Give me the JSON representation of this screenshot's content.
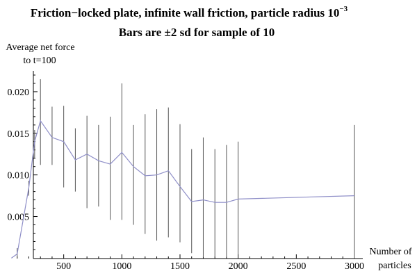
{
  "chart_data": {
    "type": "line",
    "title_main": "Friction−locked plate, infinite wall friction, particle radius 10",
    "title_exponent": "−3",
    "subtitle": "Bars are ±2 sd for sample of 10",
    "ylabel_line1": "Average net force",
    "ylabel_line2": "to t=100",
    "xlabel_line1": "Number of",
    "xlabel_line2": "particles",
    "xlim": [
      0,
      3000
    ],
    "ylim": [
      -5e-05,
      0.0225
    ],
    "x_ticks": [
      500,
      1000,
      1500,
      2000,
      2500,
      3000
    ],
    "x_tick_labels": [
      "500",
      "1000",
      "1500",
      "2000",
      "2500",
      "3000"
    ],
    "y_ticks": [
      0.005,
      0.01,
      0.015,
      0.02
    ],
    "y_tick_labels": [
      "0.005",
      "0.010",
      "0.015",
      "0.020"
    ],
    "series": [
      {
        "name": "Average net force",
        "x": [
          50,
          100,
          200,
          250,
          300,
          400,
          500,
          600,
          700,
          800,
          900,
          1000,
          1100,
          1200,
          1300,
          1400,
          1500,
          1600,
          1700,
          1800,
          1900,
          2000,
          3000
        ],
        "values": [
          0.0,
          0.0005,
          0.0085,
          0.014,
          0.0165,
          0.0145,
          0.014,
          0.0118,
          0.0125,
          0.0117,
          0.0113,
          0.0127,
          0.011,
          0.0099,
          0.01,
          0.0105,
          0.0086,
          0.0068,
          0.007,
          0.0067,
          0.0067,
          0.0071,
          0.0075
        ],
        "lower": [
          0.0,
          0.0,
          0.0075,
          0.012,
          0.0112,
          0.0112,
          0.0085,
          0.008,
          0.006,
          0.0062,
          0.0046,
          0.0046,
          0.004,
          0.0029,
          0.0021,
          0.0025,
          0.0019,
          0.0006,
          0.0001,
          0.0001,
          0.0001,
          0.0,
          0.0
        ],
        "upper": [
          0.0,
          0.0012,
          0.0093,
          0.0154,
          0.0215,
          0.0182,
          0.0183,
          0.0156,
          0.0171,
          0.016,
          0.017,
          0.021,
          0.016,
          0.0173,
          0.0179,
          0.0181,
          0.0161,
          0.0131,
          0.0145,
          0.0131,
          0.0136,
          0.014,
          0.016
        ]
      }
    ]
  }
}
